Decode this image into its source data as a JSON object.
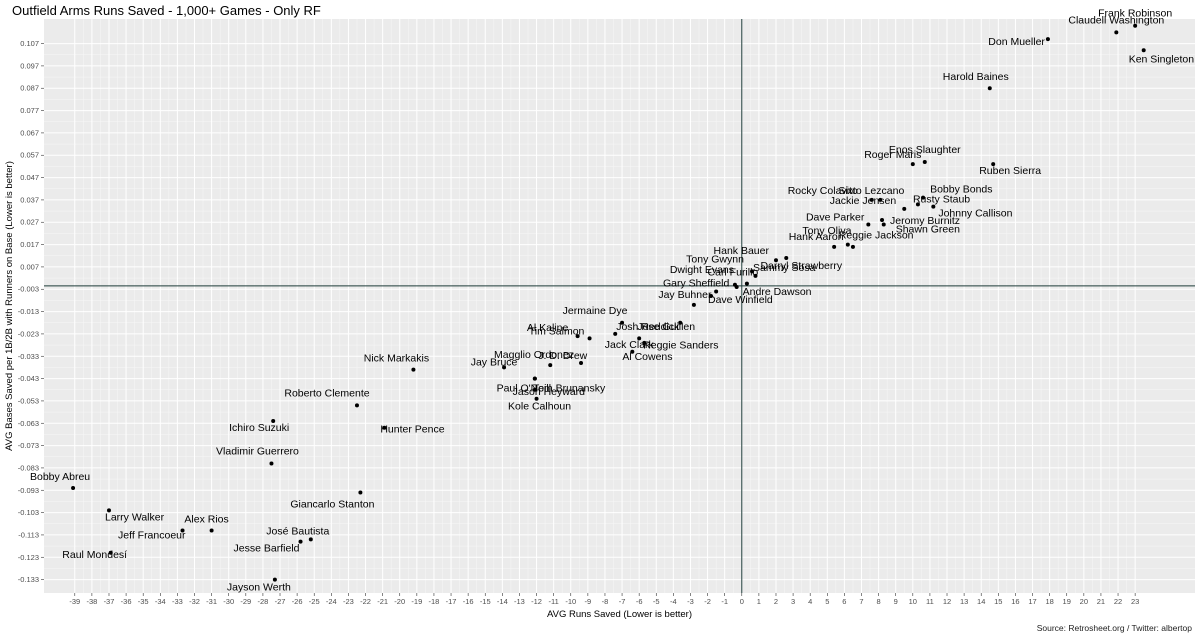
{
  "chart_data": {
    "type": "scatter",
    "title": "Outfield Arms Runs Saved - 1,000+ Games - Only RF",
    "xlabel": "AVG Runs Saved (Lower is better)",
    "ylabel": "AVG Bases Saved per 1B/2B with Runners on Base (Lower is better)",
    "source": "Source: Retrosheet.org / Twitter: albertop",
    "xlim": [
      -40.8,
      26.5
    ],
    "ylim": [
      -0.139,
      0.118
    ],
    "x_ticks": [
      -39,
      -38,
      -37,
      -36,
      -35,
      -34,
      -33,
      -32,
      -31,
      -30,
      -29,
      -28,
      -27,
      -26,
      -25,
      -24,
      -23,
      -22,
      -21,
      -20,
      -19,
      -18,
      -17,
      -16,
      -15,
      -14,
      -13,
      -12,
      -11,
      -10,
      -9,
      -8,
      -7,
      -6,
      -5,
      -4,
      -3,
      -2,
      -1,
      0,
      1,
      2,
      3,
      4,
      5,
      6,
      7,
      8,
      9,
      10,
      11,
      12,
      13,
      14,
      15,
      16,
      17,
      18,
      19,
      20,
      21,
      22,
      23
    ],
    "y_ticks": [
      0.107,
      0.097,
      0.087,
      0.077,
      0.067,
      0.057,
      0.047,
      0.037,
      0.027,
      0.017,
      0.007,
      -0.003,
      -0.013,
      -0.023,
      -0.033,
      -0.043,
      -0.053,
      -0.063,
      -0.073,
      -0.083,
      -0.093,
      -0.103,
      -0.113,
      -0.123,
      -0.133
    ],
    "grid": true,
    "reference_lines": {
      "x": 0,
      "y": -0.0015
    },
    "points": [
      {
        "name": "Frank Robinson",
        "x": 23.0,
        "y": 0.115
      },
      {
        "name": "Claudell Washington",
        "x": 21.9,
        "y": 0.112
      },
      {
        "name": "Don Mueller",
        "x": 17.9,
        "y": 0.109
      },
      {
        "name": "Ken Singleton",
        "x": 23.5,
        "y": 0.104
      },
      {
        "name": "Harold Baines",
        "x": 14.5,
        "y": 0.087
      },
      {
        "name": "Enos Slaughter",
        "x": 10.7,
        "y": 0.054
      },
      {
        "name": "Ruben Sierra",
        "x": 14.7,
        "y": 0.053
      },
      {
        "name": "Roger Maris",
        "x": 10.0,
        "y": 0.053
      },
      {
        "name": "Bobby Bonds",
        "x": 10.6,
        "y": 0.038
      },
      {
        "name": "Rocky Colavito",
        "x": 7.6,
        "y": 0.037
      },
      {
        "name": "Sixto Lezcano",
        "x": 8.1,
        "y": 0.037
      },
      {
        "name": "Rusty Staub",
        "x": 10.3,
        "y": 0.035
      },
      {
        "name": "Johnny Callison",
        "x": 11.2,
        "y": 0.034
      },
      {
        "name": "Jackie Jensen",
        "x": 9.5,
        "y": 0.033
      },
      {
        "name": "Jeromy Burnitz",
        "x": 8.2,
        "y": 0.028
      },
      {
        "name": "Dave Parker",
        "x": 7.4,
        "y": 0.026
      },
      {
        "name": "Shawn Green",
        "x": 8.3,
        "y": 0.026
      },
      {
        "name": "Hank Aaron",
        "x": 5.4,
        "y": 0.016
      },
      {
        "name": "Reggie Jackson",
        "x": 6.2,
        "y": 0.017
      },
      {
        "name": "Tony Oliva",
        "x": 6.5,
        "y": 0.016
      },
      {
        "name": "Sammy Sosa",
        "x": 2.6,
        "y": 0.011
      },
      {
        "name": "Hank Bauer",
        "x": 2.0,
        "y": 0.01
      },
      {
        "name": "Tony Gwynn",
        "x": 0.6,
        "y": 0.005
      },
      {
        "name": "Darryl Strawberry",
        "x": 0.8,
        "y": 0.003
      },
      {
        "name": "Dwight Evans",
        "x": -0.4,
        "y": -0.001
      },
      {
        "name": "Carl Furillo",
        "x": 0.3,
        "y": -0.0005
      },
      {
        "name": "Andre Dawson",
        "x": -0.3,
        "y": -0.002
      },
      {
        "name": "Gary Sheffield",
        "x": -1.5,
        "y": -0.004
      },
      {
        "name": "Dave Winfield",
        "x": -1.8,
        "y": -0.006
      },
      {
        "name": "Jay Buhner",
        "x": -2.8,
        "y": -0.01
      },
      {
        "name": "Jose Guillen",
        "x": -3.6,
        "y": -0.018
      },
      {
        "name": "Jermaine Dye",
        "x": -7.0,
        "y": -0.018
      },
      {
        "name": "Al Kaline",
        "x": -9.6,
        "y": -0.024
      },
      {
        "name": "Tim Salmon",
        "x": -8.9,
        "y": -0.025
      },
      {
        "name": "Josh Reddick",
        "x": -7.4,
        "y": -0.023
      },
      {
        "name": "Magglio Ordonez",
        "x": -9.4,
        "y": -0.036
      },
      {
        "name": "Jack Clark",
        "x": -5.7,
        "y": -0.027
      },
      {
        "name": "Reggie Sanders",
        "x": -6.0,
        "y": -0.025
      },
      {
        "name": "Al Cowens",
        "x": -6.4,
        "y": -0.031
      },
      {
        "name": "J. D. Drew",
        "x": -11.2,
        "y": -0.037
      },
      {
        "name": "Jay Bruce",
        "x": -13.9,
        "y": -0.038
      },
      {
        "name": "Nick Markakis",
        "x": -19.2,
        "y": -0.039
      },
      {
        "name": "Tom Brunansky",
        "x": -12.1,
        "y": -0.043
      },
      {
        "name": "Paul O'Neill",
        "x": -12.1,
        "y": -0.043
      },
      {
        "name": "Jason Heyward",
        "x": -12.1,
        "y": -0.048
      },
      {
        "name": "Kole Calhoun",
        "x": -12.0,
        "y": -0.052
      },
      {
        "name": "Roberto Clemente",
        "x": -22.5,
        "y": -0.055
      },
      {
        "name": "Ichiro Suzuki",
        "x": -27.4,
        "y": -0.062
      },
      {
        "name": "Hunter Pence",
        "x": -20.9,
        "y": -0.065
      },
      {
        "name": "Vladimir Guerrero",
        "x": -27.5,
        "y": -0.081
      },
      {
        "name": "Bobby Abreu",
        "x": -39.1,
        "y": -0.092
      },
      {
        "name": "Giancarlo Stanton",
        "x": -22.3,
        "y": -0.094
      },
      {
        "name": "Larry Walker",
        "x": -37.0,
        "y": -0.102
      },
      {
        "name": "Alex Rios",
        "x": -31.0,
        "y": -0.111
      },
      {
        "name": "Jeff Francoeur",
        "x": -32.7,
        "y": -0.111
      },
      {
        "name": "José Bautista",
        "x": -25.2,
        "y": -0.115
      },
      {
        "name": "Jesse Barfield",
        "x": -25.8,
        "y": -0.116
      },
      {
        "name": "Raul Mondesí",
        "x": -36.9,
        "y": -0.121
      },
      {
        "name": "Jayson Werth",
        "x": -27.3,
        "y": -0.133
      }
    ]
  }
}
